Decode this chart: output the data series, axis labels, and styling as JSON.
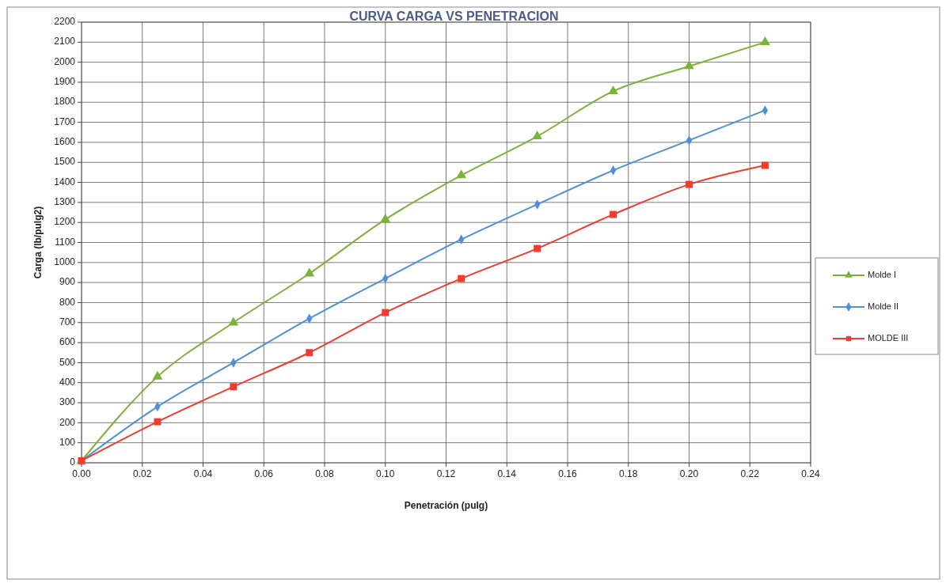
{
  "chart_data": {
    "type": "line",
    "title": "CURVA CARGA VS PENETRACION",
    "xlabel": "Penetración (pulg)",
    "ylabel": "Carga (lb/pulg2)",
    "x": [
      0,
      0.025,
      0.05,
      0.075,
      0.1,
      0.125,
      0.15,
      0.175,
      0.2,
      0.225
    ],
    "series": [
      {
        "name": "Molde I",
        "color": "#7db23a",
        "marker": "triangle",
        "values": [
          10,
          430,
          700,
          945,
          1215,
          1435,
          1630,
          1855,
          1980,
          2100
        ]
      },
      {
        "name": "Molde II",
        "color": "#4f8fd6",
        "marker": "diamond",
        "values": [
          10,
          280,
          500,
          720,
          920,
          1115,
          1290,
          1460,
          1610,
          1760
        ]
      },
      {
        "name": "MOLDE III",
        "color": "#f03c2e",
        "marker": "square",
        "values": [
          10,
          205,
          380,
          550,
          750,
          920,
          1070,
          1240,
          1390,
          1485
        ]
      }
    ],
    "xlim": [
      0,
      0.24
    ],
    "xticks": [
      {
        "value": 0,
        "label": "0.00"
      },
      {
        "value": 0.02,
        "label": "0.02"
      },
      {
        "value": 0.04,
        "label": "0.04"
      },
      {
        "value": 0.06,
        "label": "0.06"
      },
      {
        "value": 0.08,
        "label": "0.08"
      },
      {
        "value": 0.1,
        "label": "0.10"
      },
      {
        "value": 0.12,
        "label": "0.12"
      },
      {
        "value": 0.14,
        "label": "0.14"
      },
      {
        "value": 0.16,
        "label": "0.16"
      },
      {
        "value": 0.18,
        "label": "0.18"
      },
      {
        "value": 0.2,
        "label": "0.20"
      },
      {
        "value": 0.22,
        "label": "0.22"
      },
      {
        "value": 0.24,
        "label": "0.24"
      }
    ],
    "ylim": [
      0,
      2200
    ],
    "yticks": [
      0,
      100,
      200,
      300,
      400,
      500,
      600,
      700,
      800,
      900,
      1000,
      1100,
      1200,
      1300,
      1400,
      1500,
      1600,
      1700,
      1800,
      1900,
      2000,
      2100,
      2200
    ],
    "grid": true,
    "legend": "right",
    "line_style": "solid"
  }
}
